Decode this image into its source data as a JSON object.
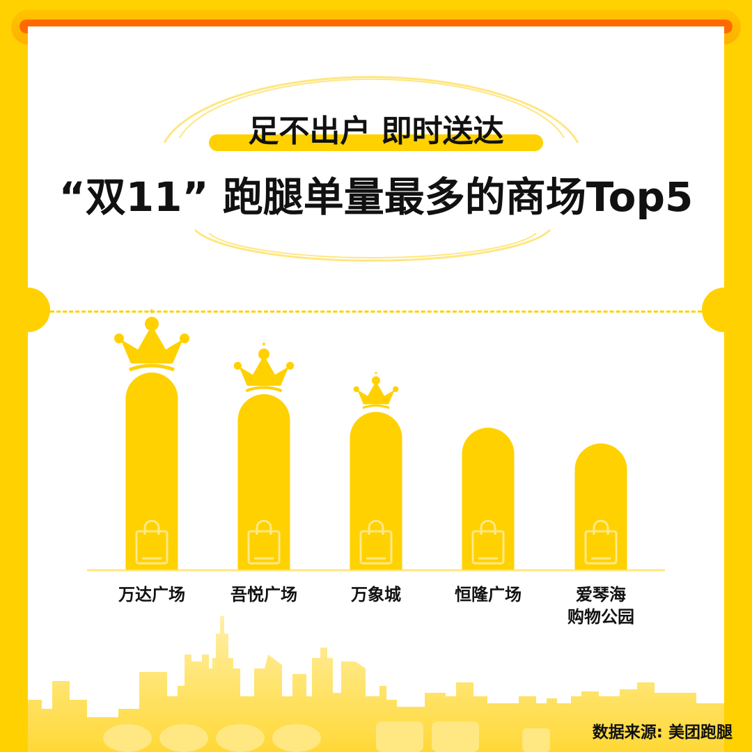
{
  "header": {
    "subtitle": "足不出户 即时送达",
    "title": "“双11” 跑腿单量最多的商场Top5"
  },
  "chart_data": {
    "type": "bar",
    "title": "“双11” 跑腿单量最多的商场Top5",
    "categories": [
      "万达广场",
      "吾悦广场",
      "万象城",
      "恒隆广场",
      "爱琴海购物公园"
    ],
    "category_lines": [
      [
        "万达广场"
      ],
      [
        "吾悦广场"
      ],
      [
        "万象城"
      ],
      [
        "恒隆广场"
      ],
      [
        "爱琴海",
        "购物公园"
      ]
    ],
    "values": [
      100,
      89,
      80,
      72,
      64
    ],
    "value_note_relative": true,
    "crowns": [
      1,
      1,
      1,
      0,
      0
    ],
    "bar_color": "#FFD100",
    "grid": false
  },
  "footer": {
    "source": "数据来源: 美团跑腿"
  },
  "colors": {
    "background": "#FFD100",
    "accent": "#FF6A00",
    "bar": "#FFD100"
  }
}
